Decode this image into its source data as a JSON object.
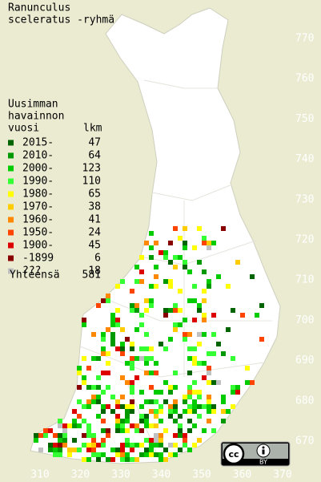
{
  "title": [
    "Ranunculus",
    "sceleratus -ryhmä"
  ],
  "legend": {
    "header": [
      "Uusimman",
      "havainnon"
    ],
    "col_year": "vuosi",
    "col_count": "lkm",
    "rows": [
      {
        "label": "2015-",
        "count": "47",
        "color": "#006400"
      },
      {
        "label": "2010-",
        "count": "64",
        "color": "#009900"
      },
      {
        "label": "2000-",
        "count": "123",
        "color": "#00cc00"
      },
      {
        "label": "1990-",
        "count": "110",
        "color": "#33ff33"
      },
      {
        "label": "1980-",
        "count": "65",
        "color": "#ffff00"
      },
      {
        "label": "1970-",
        "count": "38",
        "color": "#ffcc00"
      },
      {
        "label": "1960-",
        "count": "41",
        "color": "#ff8800"
      },
      {
        "label": "1950-",
        "count": "24",
        "color": "#ff4400"
      },
      {
        "label": "1900-",
        "count": "45",
        "color": "#dd0000"
      },
      {
        "label": "-1899",
        "count": "6",
        "color": "#880000"
      },
      {
        "label": "???",
        "count": "18",
        "color": "#c0c0c0"
      }
    ],
    "total_label": "Yhteensä",
    "total": "581"
  },
  "y_labels": [
    "770",
    "760",
    "750",
    "740",
    "730",
    "720",
    "710",
    "700",
    "690",
    "680",
    "670"
  ],
  "x_labels": [
    "310",
    "320",
    "330",
    "340",
    "350",
    "360",
    "370"
  ],
  "license": "BY"
}
